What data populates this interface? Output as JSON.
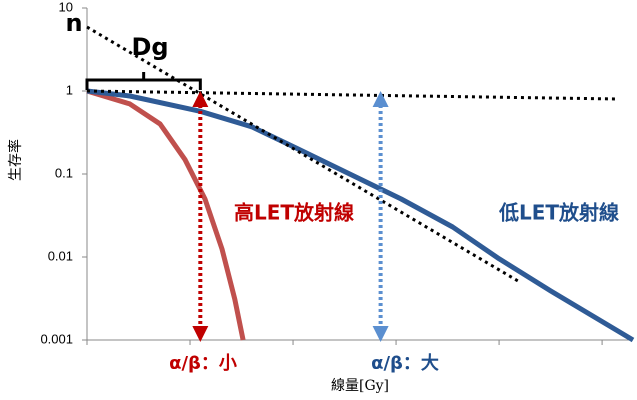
{
  "chart_data": {
    "type": "line",
    "y_label": "生存率",
    "x_label": "線量[Gy]",
    "log_y": true,
    "ylim": [
      0.001,
      10
    ],
    "yticks": [
      0.001,
      0.01,
      0.1,
      1,
      10
    ],
    "xlim": [
      0,
      10.6
    ],
    "xticks": [
      0,
      2,
      4,
      6,
      8,
      10
    ],
    "series": [
      {
        "color": "#c0504d",
        "style": "solid",
        "x": [
          0,
          0.83,
          1.42,
          1.9,
          2.29,
          2.62,
          2.87,
          3.03
        ],
        "values": [
          1,
          0.7,
          0.4,
          0.15,
          0.05,
          0.0125,
          0.0031,
          0.001
        ]
      },
      {
        "color": "#2f5b96",
        "style": "solid",
        "x": [
          0,
          0.83,
          2.2,
          3.2,
          4.1,
          5.1,
          6.1,
          7.1,
          8.0,
          9.0,
          10.6
        ],
        "values": [
          1,
          0.87,
          0.57,
          0.37,
          0.2,
          0.1,
          0.05,
          0.023,
          0.0095,
          0.0039,
          0.001
        ]
      },
      {
        "color": "#000000",
        "style": "dotted",
        "x": [
          0,
          8.4
        ],
        "values": [
          5.9,
          0.005
        ]
      },
      {
        "color": "#000000",
        "style": "dotted",
        "x": [
          0,
          10.3
        ],
        "values": [
          1,
          0.8
        ]
      }
    ],
    "arrows": [
      {
        "x": 2.2,
        "from": 1,
        "to": 0.001,
        "color": "#c00000"
      },
      {
        "x": 5.7,
        "from": 1,
        "to": 0.001,
        "color": "#5b8fd0"
      }
    ],
    "bracket": {
      "from": 0,
      "to": 2.2,
      "label": "Dg"
    },
    "annotations": [
      {
        "text": "n",
        "color": "#000000"
      },
      {
        "text": "高LET放射線",
        "color": "#c00000"
      },
      {
        "text": "低LET放射線",
        "color": "#1f4e8c"
      },
      {
        "text": "α/β：小",
        "color": "#c00000"
      },
      {
        "text": "α/β：大",
        "color": "#1f4e8c"
      }
    ]
  }
}
